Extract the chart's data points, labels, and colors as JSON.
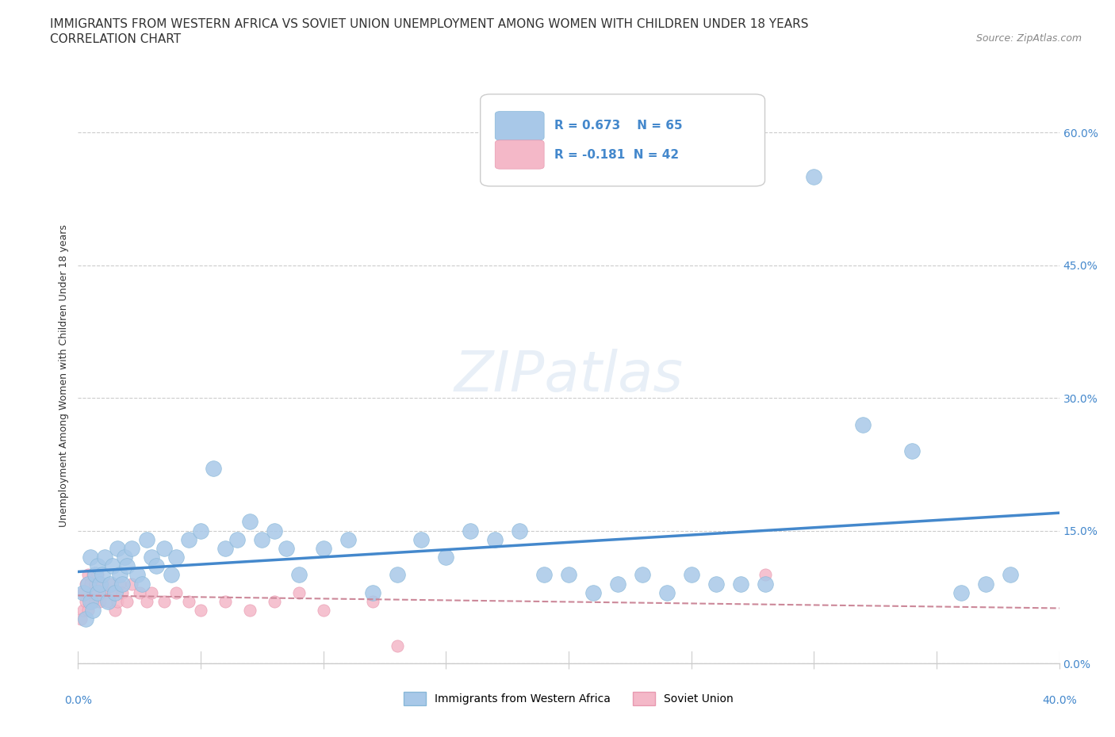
{
  "title_line1": "IMMIGRANTS FROM WESTERN AFRICA VS SOVIET UNION UNEMPLOYMENT AMONG WOMEN WITH CHILDREN UNDER 18 YEARS",
  "title_line2": "CORRELATION CHART",
  "source_text": "Source: ZipAtlas.com",
  "ylabel": "Unemployment Among Women with Children Under 18 years",
  "watermark": "ZIPatlas",
  "legend_r1": "R = 0.673",
  "legend_n1": "N = 65",
  "legend_r2": "R = -0.181",
  "legend_n2": "N = 42",
  "legend_label1": "Immigrants from Western Africa",
  "legend_label2": "Soviet Union",
  "xlim": [
    0.0,
    0.4
  ],
  "ylim": [
    0.0,
    0.65
  ],
  "yticks": [
    0.0,
    0.15,
    0.3,
    0.45,
    0.6
  ],
  "ytick_labels": [
    "0.0%",
    "15.0%",
    "30.0%",
    "45.0%",
    "60.0%"
  ],
  "xticks": [
    0.0,
    0.05,
    0.1,
    0.15,
    0.2,
    0.25,
    0.3,
    0.35,
    0.4
  ],
  "color_blue": "#a8c8e8",
  "color_pink": "#f4b8c8",
  "line_blue": "#4488cc",
  "line_pink": "#cc8899",
  "background_color": "#ffffff",
  "western_africa_x": [
    0.002,
    0.003,
    0.004,
    0.005,
    0.005,
    0.006,
    0.007,
    0.008,
    0.008,
    0.009,
    0.01,
    0.011,
    0.012,
    0.013,
    0.014,
    0.015,
    0.016,
    0.017,
    0.018,
    0.019,
    0.02,
    0.022,
    0.024,
    0.026,
    0.028,
    0.03,
    0.032,
    0.035,
    0.038,
    0.04,
    0.045,
    0.05,
    0.055,
    0.06,
    0.065,
    0.07,
    0.075,
    0.08,
    0.085,
    0.09,
    0.1,
    0.11,
    0.12,
    0.13,
    0.14,
    0.15,
    0.16,
    0.17,
    0.18,
    0.19,
    0.2,
    0.21,
    0.22,
    0.23,
    0.24,
    0.25,
    0.26,
    0.27,
    0.28,
    0.3,
    0.32,
    0.34,
    0.36,
    0.37,
    0.38
  ],
  "western_africa_y": [
    0.08,
    0.05,
    0.09,
    0.07,
    0.12,
    0.06,
    0.1,
    0.08,
    0.11,
    0.09,
    0.1,
    0.12,
    0.07,
    0.09,
    0.11,
    0.08,
    0.13,
    0.1,
    0.09,
    0.12,
    0.11,
    0.13,
    0.1,
    0.09,
    0.14,
    0.12,
    0.11,
    0.13,
    0.1,
    0.12,
    0.14,
    0.15,
    0.22,
    0.13,
    0.14,
    0.16,
    0.14,
    0.15,
    0.13,
    0.1,
    0.13,
    0.14,
    0.08,
    0.1,
    0.14,
    0.12,
    0.15,
    0.14,
    0.15,
    0.1,
    0.1,
    0.08,
    0.09,
    0.1,
    0.08,
    0.1,
    0.09,
    0.09,
    0.09,
    0.55,
    0.27,
    0.24,
    0.08,
    0.09,
    0.1
  ],
  "soviet_x": [
    0.001,
    0.002,
    0.002,
    0.003,
    0.003,
    0.004,
    0.004,
    0.005,
    0.005,
    0.006,
    0.006,
    0.007,
    0.007,
    0.008,
    0.008,
    0.009,
    0.01,
    0.011,
    0.012,
    0.013,
    0.014,
    0.015,
    0.016,
    0.017,
    0.018,
    0.02,
    0.022,
    0.025,
    0.028,
    0.03,
    0.035,
    0.04,
    0.045,
    0.05,
    0.06,
    0.07,
    0.08,
    0.09,
    0.1,
    0.12,
    0.13,
    0.28
  ],
  "soviet_y": [
    0.05,
    0.08,
    0.06,
    0.07,
    0.09,
    0.06,
    0.1,
    0.07,
    0.09,
    0.08,
    0.1,
    0.07,
    0.09,
    0.08,
    0.1,
    0.07,
    0.09,
    0.08,
    0.07,
    0.09,
    0.08,
    0.06,
    0.07,
    0.09,
    0.08,
    0.07,
    0.09,
    0.08,
    0.07,
    0.08,
    0.07,
    0.08,
    0.07,
    0.06,
    0.07,
    0.06,
    0.07,
    0.08,
    0.06,
    0.07,
    0.02,
    0.1
  ],
  "title_fontsize": 11,
  "subtitle_fontsize": 11,
  "source_fontsize": 9,
  "axis_fontsize": 9,
  "tick_fontsize": 10,
  "dot_size_blue": 200,
  "dot_size_pink": 120
}
